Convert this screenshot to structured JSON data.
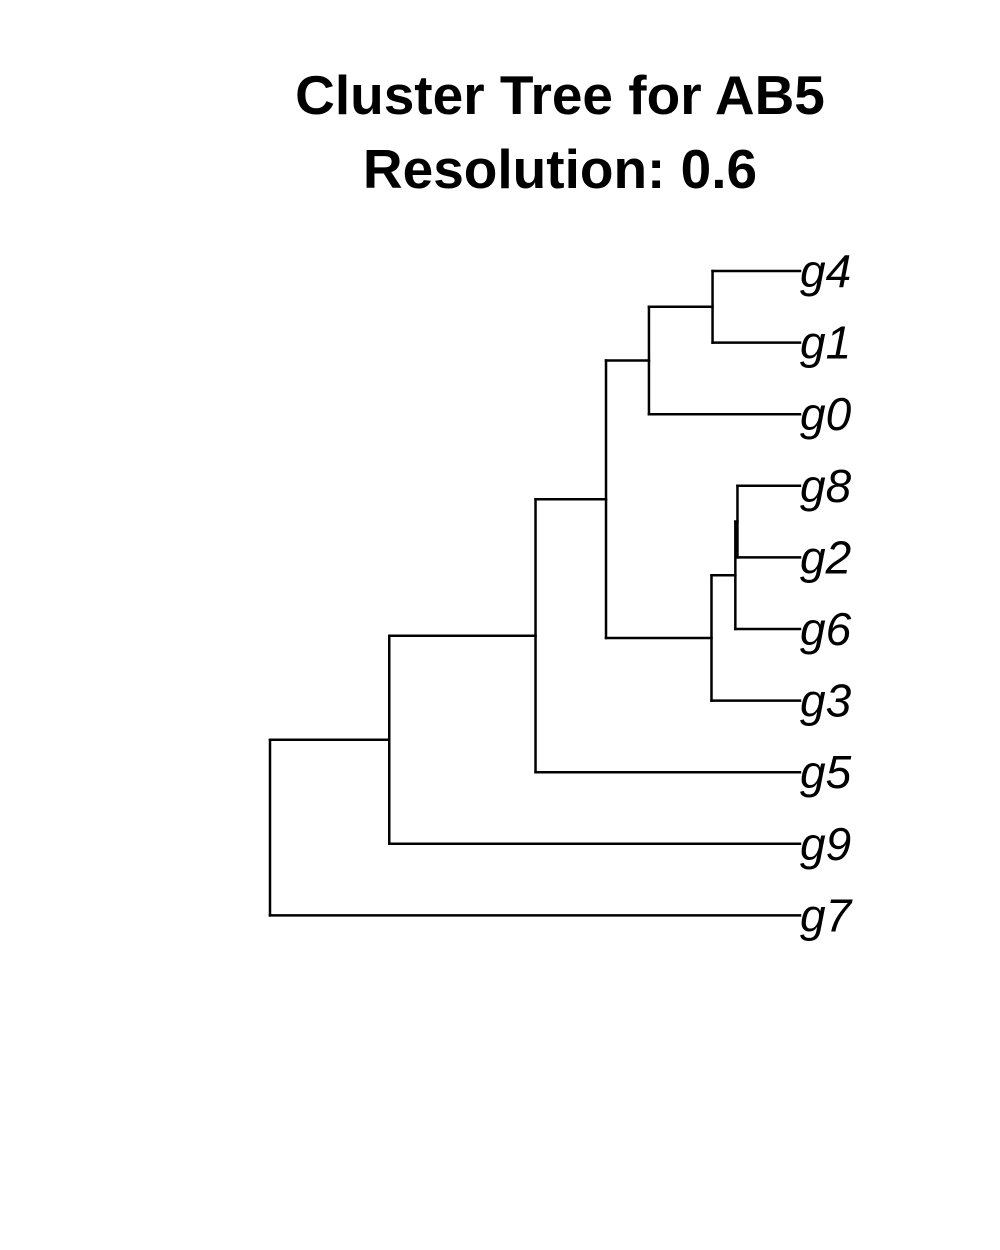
{
  "title": {
    "line1": "Cluster Tree for AB5",
    "line2": "Resolution: 0.6"
  },
  "tree": {
    "tips": [
      "g4",
      "g1",
      "g0",
      "g8",
      "g2",
      "g6",
      "g3",
      "g5",
      "g9",
      "g7"
    ],
    "newick": "(((((g4,g1),g0),(((g8,g2),g6),g3)),g5),g9),g7);",
    "nodes": {
      "n_g4_g1": {
        "children": [
          "g4",
          "g1"
        ],
        "height": 0.165
      },
      "n_g0": {
        "children": [
          "n_g4_g1",
          "g0"
        ],
        "height": 0.285
      },
      "n_g8_g2": {
        "children": [
          "g8",
          "g2"
        ],
        "height": 0.118
      },
      "n_g6": {
        "children": [
          "n_g8_g2",
          "g6"
        ],
        "height": 0.122
      },
      "n_g3": {
        "children": [
          "n_g6",
          "g3"
        ],
        "height": 0.167
      },
      "n_mid": {
        "children": [
          "n_g0",
          "n_g3"
        ],
        "height": 0.366
      },
      "n_g5": {
        "children": [
          "n_mid",
          "g5"
        ],
        "height": 0.499
      },
      "n_g9": {
        "children": [
          "n_g5",
          "g9"
        ],
        "height": 0.775
      },
      "root": {
        "children": [
          "n_g9",
          "g7"
        ],
        "height": 1.0
      }
    },
    "line_color": "#000000"
  }
}
